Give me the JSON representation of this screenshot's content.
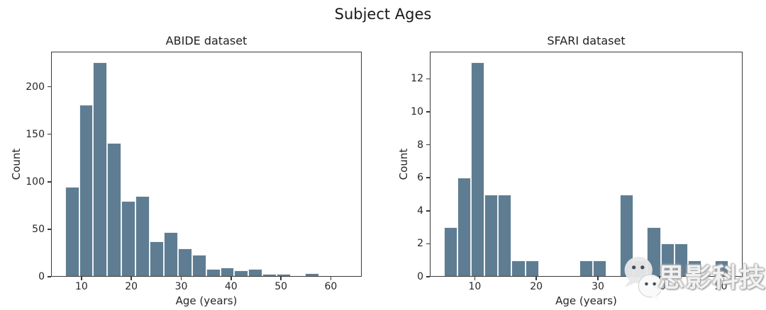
{
  "figure": {
    "title": "Subject Ages",
    "background": "#ffffff",
    "bar_color": "#5f7d92",
    "bar_edge_color": "#ffffff",
    "spine_color": "#3a3a3a",
    "text_color": "#262626"
  },
  "chart_data": [
    {
      "type": "bar",
      "title": "ABIDE dataset",
      "xlabel": "Age (years)",
      "ylabel": "Count",
      "bin_start": 6.7,
      "bin_width": 2.83,
      "values": [
        95,
        181,
        226,
        141,
        80,
        85,
        37,
        47,
        30,
        23,
        8,
        10,
        7,
        8,
        3,
        3,
        0,
        4,
        0,
        1
      ],
      "xlim": [
        3.9,
        66.2
      ],
      "ylim": [
        0,
        237
      ],
      "xticks": [
        10,
        20,
        30,
        40,
        50,
        60
      ],
      "yticks": [
        0,
        50,
        100,
        150,
        200
      ],
      "grid": false,
      "legend": null
    },
    {
      "type": "bar",
      "title": "SFARI dataset",
      "xlabel": "Age (years)",
      "ylabel": "Count",
      "bin_start": 5.0,
      "bin_width": 2.2,
      "values": [
        3,
        6,
        13,
        5,
        5,
        1,
        1,
        0,
        0,
        0,
        1,
        1,
        0,
        5,
        1,
        3,
        2,
        2,
        1,
        0,
        1
      ],
      "xlim": [
        2.7,
        53.5
      ],
      "ylim": [
        0,
        13.65
      ],
      "xticks": [
        10,
        20,
        30,
        40,
        50
      ],
      "yticks": [
        0,
        2,
        4,
        6,
        8,
        10,
        12
      ],
      "grid": false,
      "legend": null
    }
  ],
  "watermark": {
    "text": "思影科技",
    "icon": "wechat-icon",
    "bubble_color": "#e8e8e8",
    "eye_color": "#3f4e5a",
    "text_color": "#fafafa",
    "outline_color": "#8f8f8f"
  }
}
